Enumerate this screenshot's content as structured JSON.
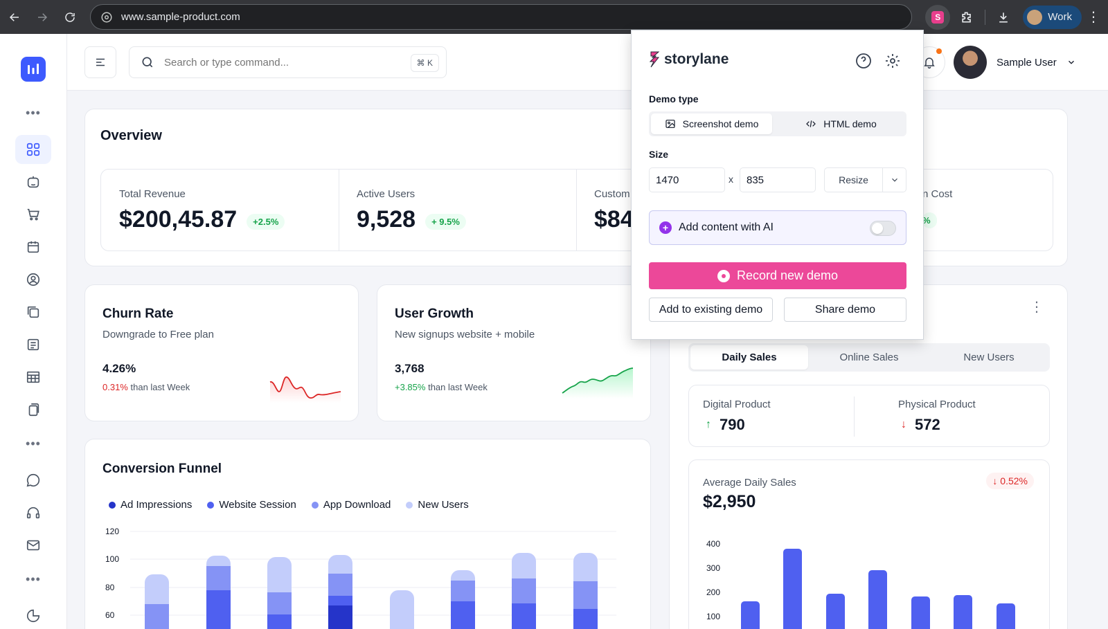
{
  "browser": {
    "url": "www.sample-product.com",
    "profile": "Work",
    "extension_icon": "storylane-icon"
  },
  "header": {
    "search_placeholder": "Search or type command...",
    "shortcut": "⌘ K",
    "user_name": "Sample User"
  },
  "overview": {
    "title": "Overview",
    "metrics": [
      {
        "label": "Total Revenue",
        "value": "$200,45.87",
        "change": "+2.5%"
      },
      {
        "label": "Active Users",
        "value": "9,528",
        "change": "+ 9.5%"
      },
      {
        "label": "Custom",
        "value": "$84",
        "change": ""
      },
      {
        "label": "n Cost",
        "value": "",
        "change": "%"
      }
    ]
  },
  "churn": {
    "title": "Churn Rate",
    "subtitle": "Downgrade to Free plan",
    "value": "4.26%",
    "delta": "0.31%",
    "delta_suffix": "than last Week",
    "accent": "#dc2626"
  },
  "growth": {
    "title": "User Growth",
    "subtitle": "New signups website + mobile",
    "value": "3,768",
    "delta": "+3.85%",
    "delta_suffix": "than last Week",
    "accent": "#16a34a"
  },
  "funnel": {
    "title": "Conversion Funnel",
    "legend": [
      {
        "name": "Ad Impressions",
        "color": "#2534c9"
      },
      {
        "name": "Website Session",
        "color": "#4f60f0"
      },
      {
        "name": "App Download",
        "color": "#8593f5"
      },
      {
        "name": "New Users",
        "color": "#c3cdfb"
      }
    ],
    "yticks": [
      "120",
      "100",
      "80",
      "60"
    ]
  },
  "sales": {
    "tabs": [
      "Daily Sales",
      "Online Sales",
      "New Users"
    ],
    "digital_label": "Digital Product",
    "digital_value": "790",
    "physical_label": "Physical Product",
    "physical_value": "572",
    "avg_label": "Average Daily Sales",
    "avg_value": "$2,950",
    "avg_change": "0.52%",
    "yticks": [
      "400",
      "300",
      "200",
      "100"
    ]
  },
  "popup": {
    "brand": "storylane",
    "demo_type_label": "Demo type",
    "screenshot_demo": "Screenshot demo",
    "html_demo": "HTML demo",
    "size_label": "Size",
    "width": "1470",
    "x_label": "x",
    "height": "835",
    "resize_label": "Resize",
    "ai_label": "Add content with AI",
    "record_label": "Record new demo",
    "add_existing": "Add to existing demo",
    "share": "Share demo",
    "accent": "#ec4899"
  }
}
